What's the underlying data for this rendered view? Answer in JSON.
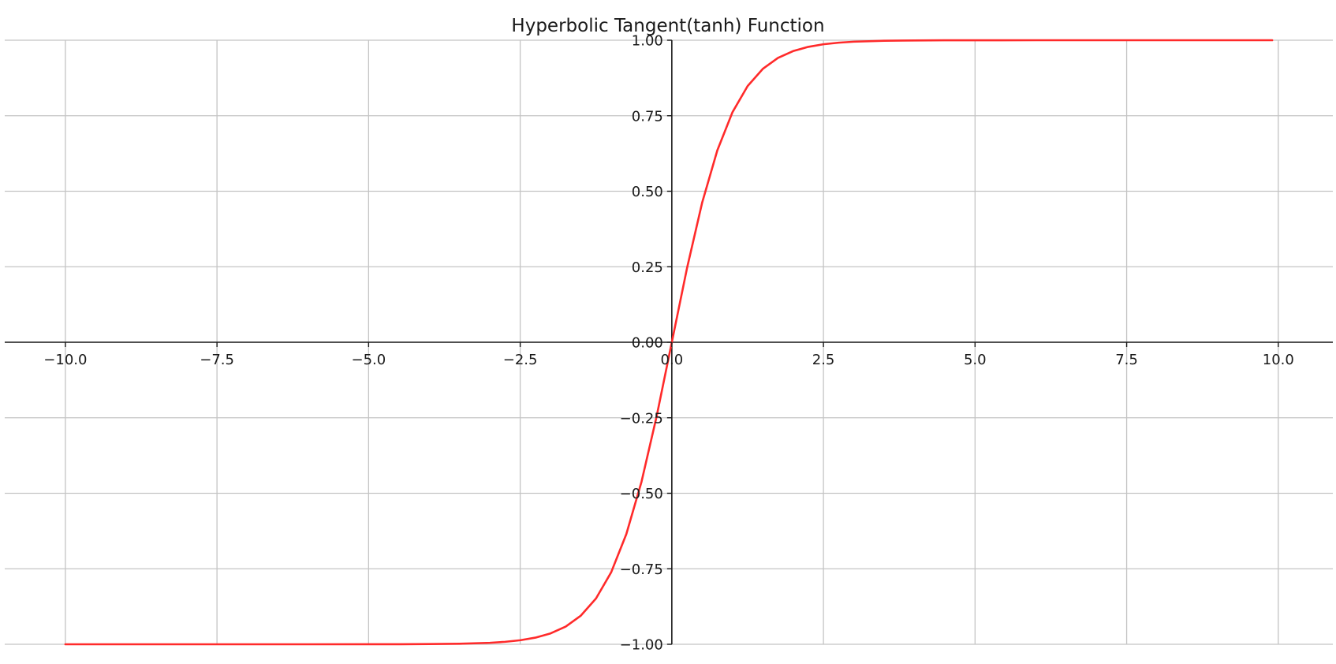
{
  "chart_data": {
    "type": "line",
    "title": "Hyperbolic Tangent(tanh) Function",
    "xlabel": "",
    "ylabel": "",
    "xlim": [
      -11.0,
      10.9
    ],
    "ylim": [
      -1.0,
      1.0
    ],
    "grid": true,
    "spines": "centered",
    "x_ticks": [
      -10.0,
      -7.5,
      -5.0,
      -2.5,
      0.0,
      2.5,
      5.0,
      7.5,
      10.0
    ],
    "x_tick_labels": [
      "−10.0",
      "−7.5",
      "−5.0",
      "−2.5",
      "0.0",
      "2.5",
      "5.0",
      "7.5",
      "10.0"
    ],
    "y_ticks": [
      1.0,
      0.75,
      0.5,
      0.25,
      0.0,
      -0.25,
      -0.5,
      -0.75,
      -1.0
    ],
    "y_tick_labels": [
      "1.00",
      "0.75",
      "0.50",
      "0.25",
      "0.00",
      "−0.25",
      "−0.50",
      "−0.75",
      "−1.00"
    ],
    "series": [
      {
        "color": "#ff2a2a",
        "x": [
          -10.0,
          -9.0,
          -8.0,
          -7.0,
          -6.0,
          -5.0,
          -4.5,
          -4.0,
          -3.5,
          -3.0,
          -2.75,
          -2.5,
          -2.25,
          -2.0,
          -1.75,
          -1.5,
          -1.25,
          -1.0,
          -0.75,
          -0.5,
          -0.25,
          0.0,
          0.25,
          0.5,
          0.75,
          1.0,
          1.25,
          1.5,
          1.75,
          2.0,
          2.25,
          2.5,
          2.75,
          3.0,
          3.5,
          4.0,
          4.5,
          5.0,
          6.0,
          7.0,
          8.0,
          9.0,
          9.9
        ],
        "y": [
          -1.0,
          -1.0,
          -1.0,
          -1.0,
          -1.0,
          -0.9999,
          -0.9998,
          -0.9993,
          -0.9982,
          -0.9951,
          -0.9918,
          -0.9866,
          -0.978,
          -0.964,
          -0.9414,
          -0.9051,
          -0.8483,
          -0.7616,
          -0.6351,
          -0.4621,
          -0.2449,
          0.0,
          0.2449,
          0.4621,
          0.6351,
          0.7616,
          0.8483,
          0.9051,
          0.9414,
          0.964,
          0.978,
          0.9866,
          0.9918,
          0.9951,
          0.9982,
          0.9993,
          0.9998,
          0.9999,
          1.0,
          1.0,
          1.0,
          1.0,
          1.0
        ]
      }
    ]
  }
}
